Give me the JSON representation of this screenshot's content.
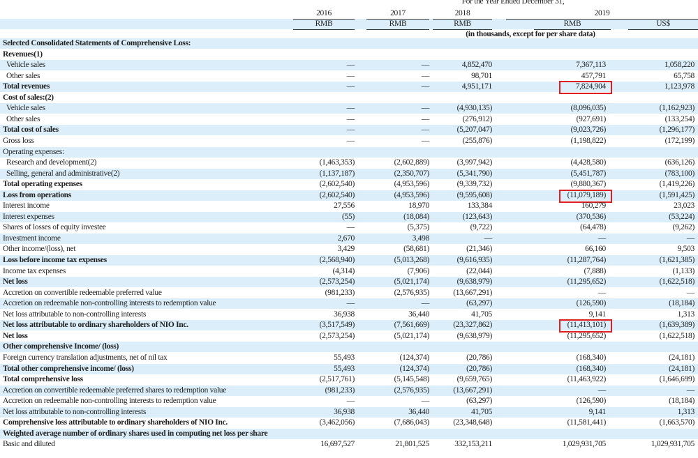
{
  "header": {
    "period": "For the Year Ended December 31,",
    "years": [
      "2016",
      "2017",
      "2018",
      "2019"
    ],
    "currencies": [
      "RMB",
      "RMB",
      "RMB",
      "RMB",
      "US$"
    ],
    "note": "(in thousands, except for per share data)"
  },
  "rows": [
    {
      "label": "Selected Consolidated Statements of Comprehensive Loss:",
      "bold": true
    },
    {
      "label": "Revenues(1)",
      "bold": true
    },
    {
      "label": "Vehicle sales",
      "sub": true,
      "values": [
        "—",
        "—",
        "4,852,470",
        "7,367,113",
        "1,058,220"
      ]
    },
    {
      "label": "Other sales",
      "sub": true,
      "values": [
        "—",
        "—",
        "98,701",
        "457,791",
        "65,758"
      ]
    },
    {
      "label": "Total revenues",
      "bold": true,
      "values": [
        "—",
        "—",
        "4,951,171",
        "7,824,904",
        "1,123,978"
      ],
      "highlight": 3
    },
    {
      "label": "Cost of sales:(2)",
      "bold": true
    },
    {
      "label": "Vehicle sales",
      "sub": true,
      "values": [
        "—",
        "—",
        "(4,930,135)",
        "(8,096,035)",
        "(1,162,923)"
      ]
    },
    {
      "label": "Other sales",
      "sub": true,
      "values": [
        "—",
        "—",
        "(276,912)",
        "(927,691)",
        "(133,254)"
      ]
    },
    {
      "label": "Total cost of sales",
      "bold": true,
      "values": [
        "—",
        "—",
        "(5,207,047)",
        "(9,023,726)",
        "(1,296,177)"
      ]
    },
    {
      "label": "Gross loss",
      "values": [
        "—",
        "—",
        "(255,876)",
        "(1,198,822)",
        "(172,199)"
      ]
    },
    {
      "label": "Operating expenses:"
    },
    {
      "label": "Research and development(2)",
      "sub": true,
      "values": [
        "(1,463,353)",
        "(2,602,889)",
        "(3,997,942)",
        "(4,428,580)",
        "(636,126)"
      ]
    },
    {
      "label": "Selling, general and administrative(2)",
      "sub": true,
      "values": [
        "(1,137,187)",
        "(2,350,707)",
        "(5,341,790)",
        "(5,451,787)",
        "(783,100)"
      ]
    },
    {
      "label": "Total operating expenses",
      "bold": true,
      "values": [
        "(2,602,540)",
        "(4,953,596)",
        "(9,339,732)",
        "(9,880,367)",
        "(1,419,226)"
      ]
    },
    {
      "label": "Loss from operations",
      "bold": true,
      "values": [
        "(2,602,540)",
        "(4,953,596)",
        "(9,595,608)",
        "(11,079,189)",
        "(1,591,425)"
      ],
      "highlight": 3
    },
    {
      "label": "Interest income",
      "values": [
        "27,556",
        "18,970",
        "133,384",
        "160,279",
        "23,023"
      ]
    },
    {
      "label": "Interest expenses",
      "values": [
        "(55)",
        "(18,084)",
        "(123,643)",
        "(370,536)",
        "(53,224)"
      ]
    },
    {
      "label": "Shares of losses of equity investee",
      "values": [
        "—",
        "(5,375)",
        "(9,722)",
        "(64,478)",
        "(9,262)"
      ]
    },
    {
      "label": "Investment income",
      "values": [
        "2,670",
        "3,498",
        "—",
        "—",
        "—"
      ]
    },
    {
      "label": "Other income/(loss), net",
      "values": [
        "3,429",
        "(58,681)",
        "(21,346)",
        "66,160",
        "9,503"
      ]
    },
    {
      "label": "Loss before income tax expenses",
      "bold": true,
      "values": [
        "(2,568,940)",
        "(5,013,268)",
        "(9,616,935)",
        "(11,287,764)",
        "(1,621,385)"
      ]
    },
    {
      "label": "Income tax expenses",
      "values": [
        "(4,314)",
        "(7,906)",
        "(22,044)",
        "(7,888)",
        "(1,133)"
      ]
    },
    {
      "label": "Net loss",
      "bold": true,
      "values": [
        "(2,573,254)",
        "(5,021,174)",
        "(9,638,979)",
        "(11,295,652)",
        "(1,622,518)"
      ]
    },
    {
      "label": "Accretion on convertible redeemable preferred value",
      "values": [
        "(981,233)",
        "(2,576,935)",
        "(13,667,291)",
        "—",
        "—"
      ]
    },
    {
      "label": "Accretion on redeemable non-controlling interests to redemption value",
      "values": [
        "—",
        "—",
        "(63,297)",
        "(126,590)",
        "(18,184)"
      ]
    },
    {
      "label": "Net loss attributable to non-controlling interests",
      "values": [
        "36,938",
        "36,440",
        "41,705",
        "9,141",
        "1,313"
      ]
    },
    {
      "label": "Net loss attributable to ordinary shareholders of NIO Inc.",
      "bold": true,
      "values": [
        "(3,517,549)",
        "(7,561,669)",
        "(23,327,862)",
        "(11,413,101)",
        "(1,639,389)"
      ],
      "highlight": 3
    },
    {
      "label": "Net loss",
      "bold": true,
      "values": [
        "(2,573,254)",
        "(5,021,174)",
        "(9,638,979)",
        "(11,295,652)",
        "(1,622,518)"
      ]
    },
    {
      "label": "Other comprehensive Income/ (loss)",
      "bold": true
    },
    {
      "label": "Foreign currency translation adjustments, net of nil tax",
      "values": [
        "55,493",
        "(124,374)",
        "(20,786)",
        "(168,340)",
        "(24,181)"
      ]
    },
    {
      "label": "Total other comprehensive income/ (loss)",
      "bold": true,
      "values": [
        "55,493",
        "(124,374)",
        "(20,786)",
        "(168,340)",
        "(24,181)"
      ]
    },
    {
      "label": "Total comprehensive loss",
      "bold": true,
      "values": [
        "(2,517,761)",
        "(5,145,548)",
        "(9,659,765)",
        "(11,463,922)",
        "(1,646,699)"
      ]
    },
    {
      "label": "Accretion on convertible redeemable preferred shares to redemption value",
      "values": [
        "(981,233)",
        "(2,576,935)",
        "(13,667,291)",
        "—",
        "—"
      ]
    },
    {
      "label": "Accretion on redeemable non-controlling interests to redemption value",
      "values": [
        "—",
        "—",
        "(63,297)",
        "(126,590)",
        "(18,184)"
      ]
    },
    {
      "label": "Net loss attributable to non-controlling interests",
      "values": [
        "36,938",
        "36,440",
        "41,705",
        "9,141",
        "1,313"
      ]
    },
    {
      "label": "Comprehensive loss attributable to ordinary shareholders of NIO Inc.",
      "bold": true,
      "values": [
        "(3,462,056)",
        "(7,686,043)",
        "(23,348,648)",
        "(11,581,441)",
        "(1,663,570)"
      ]
    },
    {
      "label": "Weighted average number of ordinary shares used in computing net loss per share",
      "bold": true
    },
    {
      "label": "Basic and diluted",
      "values": [
        "16,697,527",
        "21,801,525",
        "332,153,211",
        "1,029,931,705",
        "1,029,931,705"
      ]
    }
  ]
}
